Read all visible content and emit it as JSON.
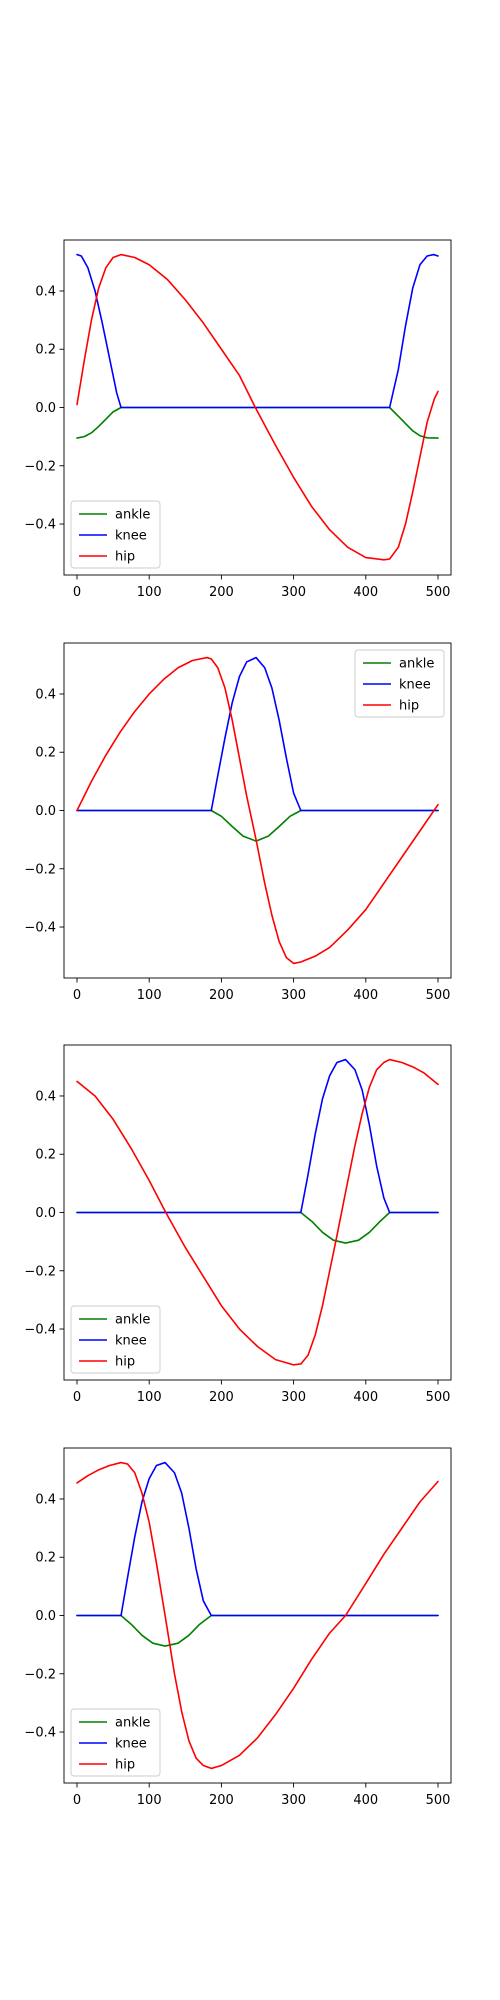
{
  "chart_data": [
    {
      "type": "line",
      "xlim": [
        -18,
        518
      ],
      "ylim": [
        -0.575,
        0.575
      ],
      "xticks": [
        0,
        100,
        200,
        300,
        400,
        500
      ],
      "yticks": [
        -0.4,
        -0.2,
        0.0,
        0.2,
        0.4
      ],
      "grid": false,
      "legend": "lower-left",
      "series": [
        {
          "name": "ankle",
          "color": "#008000",
          "x": [
            0,
            10,
            20,
            30,
            40,
            50,
            61,
            433,
            445,
            455,
            465,
            475,
            485,
            500
          ],
          "y": [
            -0.105,
            -0.1,
            -0.087,
            -0.065,
            -0.04,
            -0.015,
            0.0,
            0.0,
            -0.03,
            -0.055,
            -0.08,
            -0.097,
            -0.104,
            -0.105
          ]
        },
        {
          "name": "knee",
          "color": "#0000ff",
          "x": [
            0,
            6,
            15,
            25,
            35,
            45,
            55,
            61,
            433,
            445,
            455,
            465,
            475,
            485,
            494,
            500
          ],
          "y": [
            0.525,
            0.52,
            0.48,
            0.4,
            0.29,
            0.17,
            0.05,
            0.0,
            0.0,
            0.13,
            0.28,
            0.41,
            0.49,
            0.52,
            0.525,
            0.52
          ]
        },
        {
          "name": "hip",
          "color": "#ff0000",
          "x": [
            0,
            10,
            20,
            30,
            40,
            50,
            61,
            80,
            100,
            125,
            150,
            175,
            200,
            225,
            247,
            275,
            300,
            325,
            350,
            375,
            400,
            425,
            433,
            445,
            455,
            465,
            475,
            485,
            495,
            500
          ],
          "y": [
            0.01,
            0.16,
            0.3,
            0.41,
            0.48,
            0.515,
            0.525,
            0.515,
            0.49,
            0.44,
            0.37,
            0.29,
            0.2,
            0.11,
            0.0,
            -0.13,
            -0.24,
            -0.34,
            -0.42,
            -0.48,
            -0.515,
            -0.523,
            -0.52,
            -0.48,
            -0.4,
            -0.29,
            -0.17,
            -0.05,
            0.03,
            0.055
          ]
        }
      ]
    },
    {
      "type": "line",
      "xlim": [
        -18,
        518
      ],
      "ylim": [
        -0.575,
        0.575
      ],
      "xticks": [
        0,
        100,
        200,
        300,
        400,
        500
      ],
      "yticks": [
        -0.4,
        -0.2,
        0.0,
        0.2,
        0.4
      ],
      "grid": false,
      "legend": "upper-right",
      "series": [
        {
          "name": "ankle",
          "color": "#008000",
          "x": [
            0,
            186,
            200,
            215,
            230,
            248,
            265,
            280,
            295,
            310,
            500
          ],
          "y": [
            0.0,
            0.0,
            -0.02,
            -0.055,
            -0.088,
            -0.105,
            -0.088,
            -0.055,
            -0.02,
            0.0,
            0.0
          ]
        },
        {
          "name": "knee",
          "color": "#0000ff",
          "x": [
            0,
            186,
            195,
            205,
            215,
            225,
            235,
            248,
            260,
            270,
            280,
            290,
            300,
            310,
            500
          ],
          "y": [
            0.0,
            0.0,
            0.12,
            0.25,
            0.37,
            0.46,
            0.51,
            0.525,
            0.49,
            0.42,
            0.31,
            0.18,
            0.06,
            0.0,
            0.0
          ]
        },
        {
          "name": "hip",
          "color": "#ff0000",
          "x": [
            0,
            20,
            40,
            60,
            80,
            100,
            120,
            140,
            160,
            180,
            186,
            195,
            205,
            215,
            225,
            235,
            248,
            260,
            270,
            280,
            290,
            300,
            310,
            330,
            350,
            375,
            400,
            425,
            450,
            475,
            500
          ],
          "y": [
            0.0,
            0.1,
            0.19,
            0.27,
            0.34,
            0.4,
            0.45,
            0.49,
            0.515,
            0.525,
            0.52,
            0.49,
            0.42,
            0.31,
            0.18,
            0.05,
            -0.1,
            -0.25,
            -0.36,
            -0.45,
            -0.505,
            -0.525,
            -0.52,
            -0.5,
            -0.47,
            -0.41,
            -0.34,
            -0.25,
            -0.16,
            -0.07,
            0.02
          ]
        }
      ]
    },
    {
      "type": "line",
      "xlim": [
        -18,
        518
      ],
      "ylim": [
        -0.575,
        0.575
      ],
      "xticks": [
        0,
        100,
        200,
        300,
        400,
        500
      ],
      "yticks": [
        -0.4,
        -0.2,
        0.0,
        0.2,
        0.4
      ],
      "grid": false,
      "legend": "lower-left",
      "series": [
        {
          "name": "ankle",
          "color": "#008000",
          "x": [
            0,
            310,
            325,
            340,
            355,
            372,
            390,
            405,
            420,
            433,
            500
          ],
          "y": [
            0.0,
            0.0,
            -0.03,
            -0.068,
            -0.095,
            -0.105,
            -0.095,
            -0.068,
            -0.03,
            0.0,
            0.0
          ]
        },
        {
          "name": "knee",
          "color": "#0000ff",
          "x": [
            0,
            310,
            320,
            330,
            340,
            350,
            360,
            372,
            385,
            395,
            405,
            415,
            425,
            433,
            500
          ],
          "y": [
            0.0,
            0.0,
            0.13,
            0.27,
            0.39,
            0.47,
            0.515,
            0.525,
            0.49,
            0.42,
            0.3,
            0.16,
            0.05,
            0.0,
            0.0
          ]
        },
        {
          "name": "hip",
          "color": "#ff0000",
          "x": [
            0,
            25,
            50,
            75,
            100,
            123,
            150,
            175,
            200,
            225,
            250,
            275,
            300,
            310,
            320,
            330,
            340,
            350,
            360,
            372,
            385,
            395,
            405,
            415,
            425,
            433,
            450,
            465,
            480,
            500
          ],
          "y": [
            0.45,
            0.4,
            0.32,
            0.22,
            0.11,
            0.0,
            -0.12,
            -0.22,
            -0.32,
            -0.4,
            -0.46,
            -0.505,
            -0.523,
            -0.52,
            -0.49,
            -0.42,
            -0.32,
            -0.2,
            -0.08,
            0.07,
            0.23,
            0.34,
            0.43,
            0.49,
            0.515,
            0.525,
            0.515,
            0.5,
            0.48,
            0.44
          ]
        }
      ]
    },
    {
      "type": "line",
      "xlim": [
        -18,
        518
      ],
      "ylim": [
        -0.575,
        0.575
      ],
      "xticks": [
        0,
        100,
        200,
        300,
        400,
        500
      ],
      "yticks": [
        -0.4,
        -0.2,
        0.0,
        0.2,
        0.4
      ],
      "grid": false,
      "legend": "lower-left",
      "series": [
        {
          "name": "ankle",
          "color": "#008000",
          "x": [
            0,
            61,
            75,
            90,
            105,
            122,
            140,
            155,
            170,
            186,
            500
          ],
          "y": [
            0.0,
            0.0,
            -0.03,
            -0.068,
            -0.095,
            -0.105,
            -0.095,
            -0.068,
            -0.03,
            0.0,
            0.0
          ]
        },
        {
          "name": "knee",
          "color": "#0000ff",
          "x": [
            0,
            61,
            70,
            80,
            90,
            100,
            110,
            122,
            135,
            145,
            155,
            165,
            175,
            186,
            500
          ],
          "y": [
            0.0,
            0.0,
            0.13,
            0.27,
            0.39,
            0.47,
            0.515,
            0.525,
            0.49,
            0.42,
            0.3,
            0.16,
            0.05,
            0.0,
            0.0
          ]
        },
        {
          "name": "hip",
          "color": "#ff0000",
          "x": [
            0,
            15,
            30,
            45,
            61,
            70,
            80,
            90,
            100,
            110,
            122,
            135,
            145,
            155,
            165,
            175,
            186,
            200,
            225,
            250,
            275,
            300,
            325,
            350,
            372,
            400,
            425,
            450,
            475,
            500
          ],
          "y": [
            0.455,
            0.48,
            0.5,
            0.515,
            0.525,
            0.52,
            0.49,
            0.42,
            0.32,
            0.18,
            0.0,
            -0.2,
            -0.33,
            -0.43,
            -0.49,
            -0.515,
            -0.525,
            -0.515,
            -0.48,
            -0.42,
            -0.34,
            -0.25,
            -0.15,
            -0.06,
            0.0,
            0.11,
            0.21,
            0.3,
            0.39,
            0.46
          ]
        }
      ]
    }
  ]
}
